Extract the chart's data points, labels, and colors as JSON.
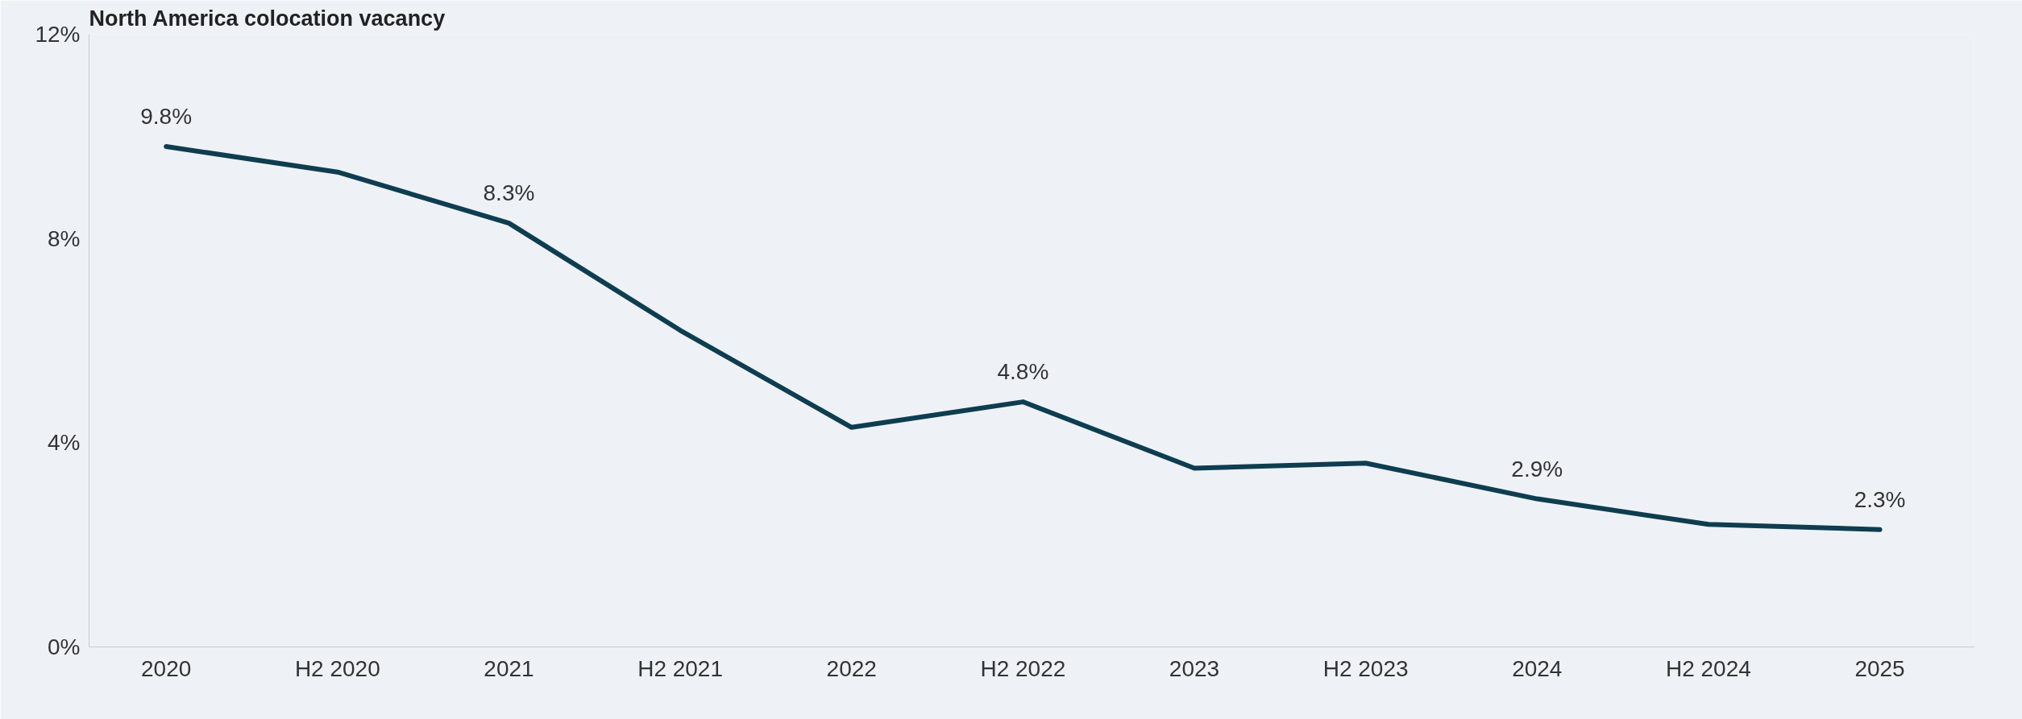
{
  "chart_data": {
    "type": "line",
    "title": "North America colocation vacancy",
    "categories": [
      "2020",
      "H2 2020",
      "2021",
      "H2 2021",
      "2022",
      "H2 2022",
      "2023",
      "H2 2023",
      "2024",
      "H2 2024",
      "2025"
    ],
    "series": [
      {
        "color": "#0e3d50",
        "values": [
          9.8,
          9.3,
          8.3,
          6.2,
          4.3,
          4.8,
          3.5,
          3.6,
          2.9,
          2.4,
          2.3
        ],
        "value_labels": [
          "9.8%",
          null,
          "8.3%",
          null,
          null,
          "4.8%",
          null,
          null,
          "2.9%",
          null,
          "2.3%"
        ]
      }
    ],
    "ylim": [
      0,
      12
    ],
    "yticks": [
      {
        "value": 0,
        "label": "0%"
      },
      {
        "value": 4,
        "label": "4%"
      },
      {
        "value": 8,
        "label": "8%"
      },
      {
        "value": 12,
        "label": "12%"
      }
    ],
    "grid": false,
    "marker": "none",
    "line_style": "solid"
  }
}
